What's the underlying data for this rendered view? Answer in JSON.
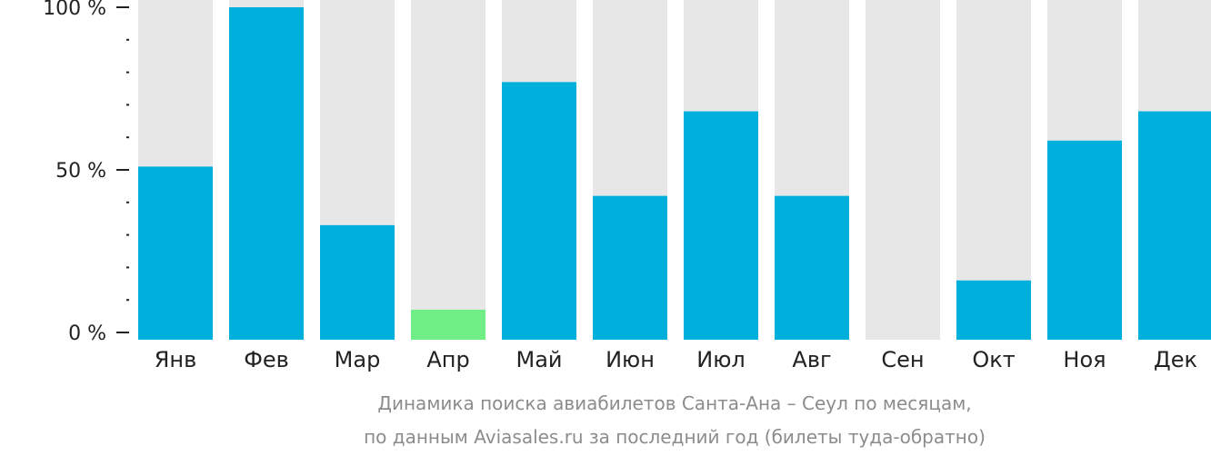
{
  "chart_data": {
    "type": "bar",
    "categories": [
      "Янв",
      "Фев",
      "Мар",
      "Апр",
      "Май",
      "Июн",
      "Июл",
      "Авг",
      "Сен",
      "Окт",
      "Ноя",
      "Дек"
    ],
    "values": [
      51,
      100,
      33,
      7,
      77,
      42,
      68,
      42,
      0,
      16,
      59,
      68
    ],
    "highlight_index": 3,
    "ylim": [
      0,
      100
    ],
    "y_ticks": [
      {
        "value": 0,
        "label": "0 %"
      },
      {
        "value": 50,
        "label": "50 %"
      },
      {
        "value": 100,
        "label": "100 %"
      }
    ],
    "minor_tick_step": 10,
    "caption_line1": "Динамика поиска авиабилетов Санта-Ана – Сеул по месяцам,",
    "caption_line2": "по данным Aviasales.ru за последний год (билеты туда-обратно)",
    "colors": {
      "bar": "#00b0dc",
      "highlight": "#6eee85",
      "background_bar": "#e7e7e7",
      "axis": "#222222",
      "caption": "#8c8c8c"
    }
  }
}
